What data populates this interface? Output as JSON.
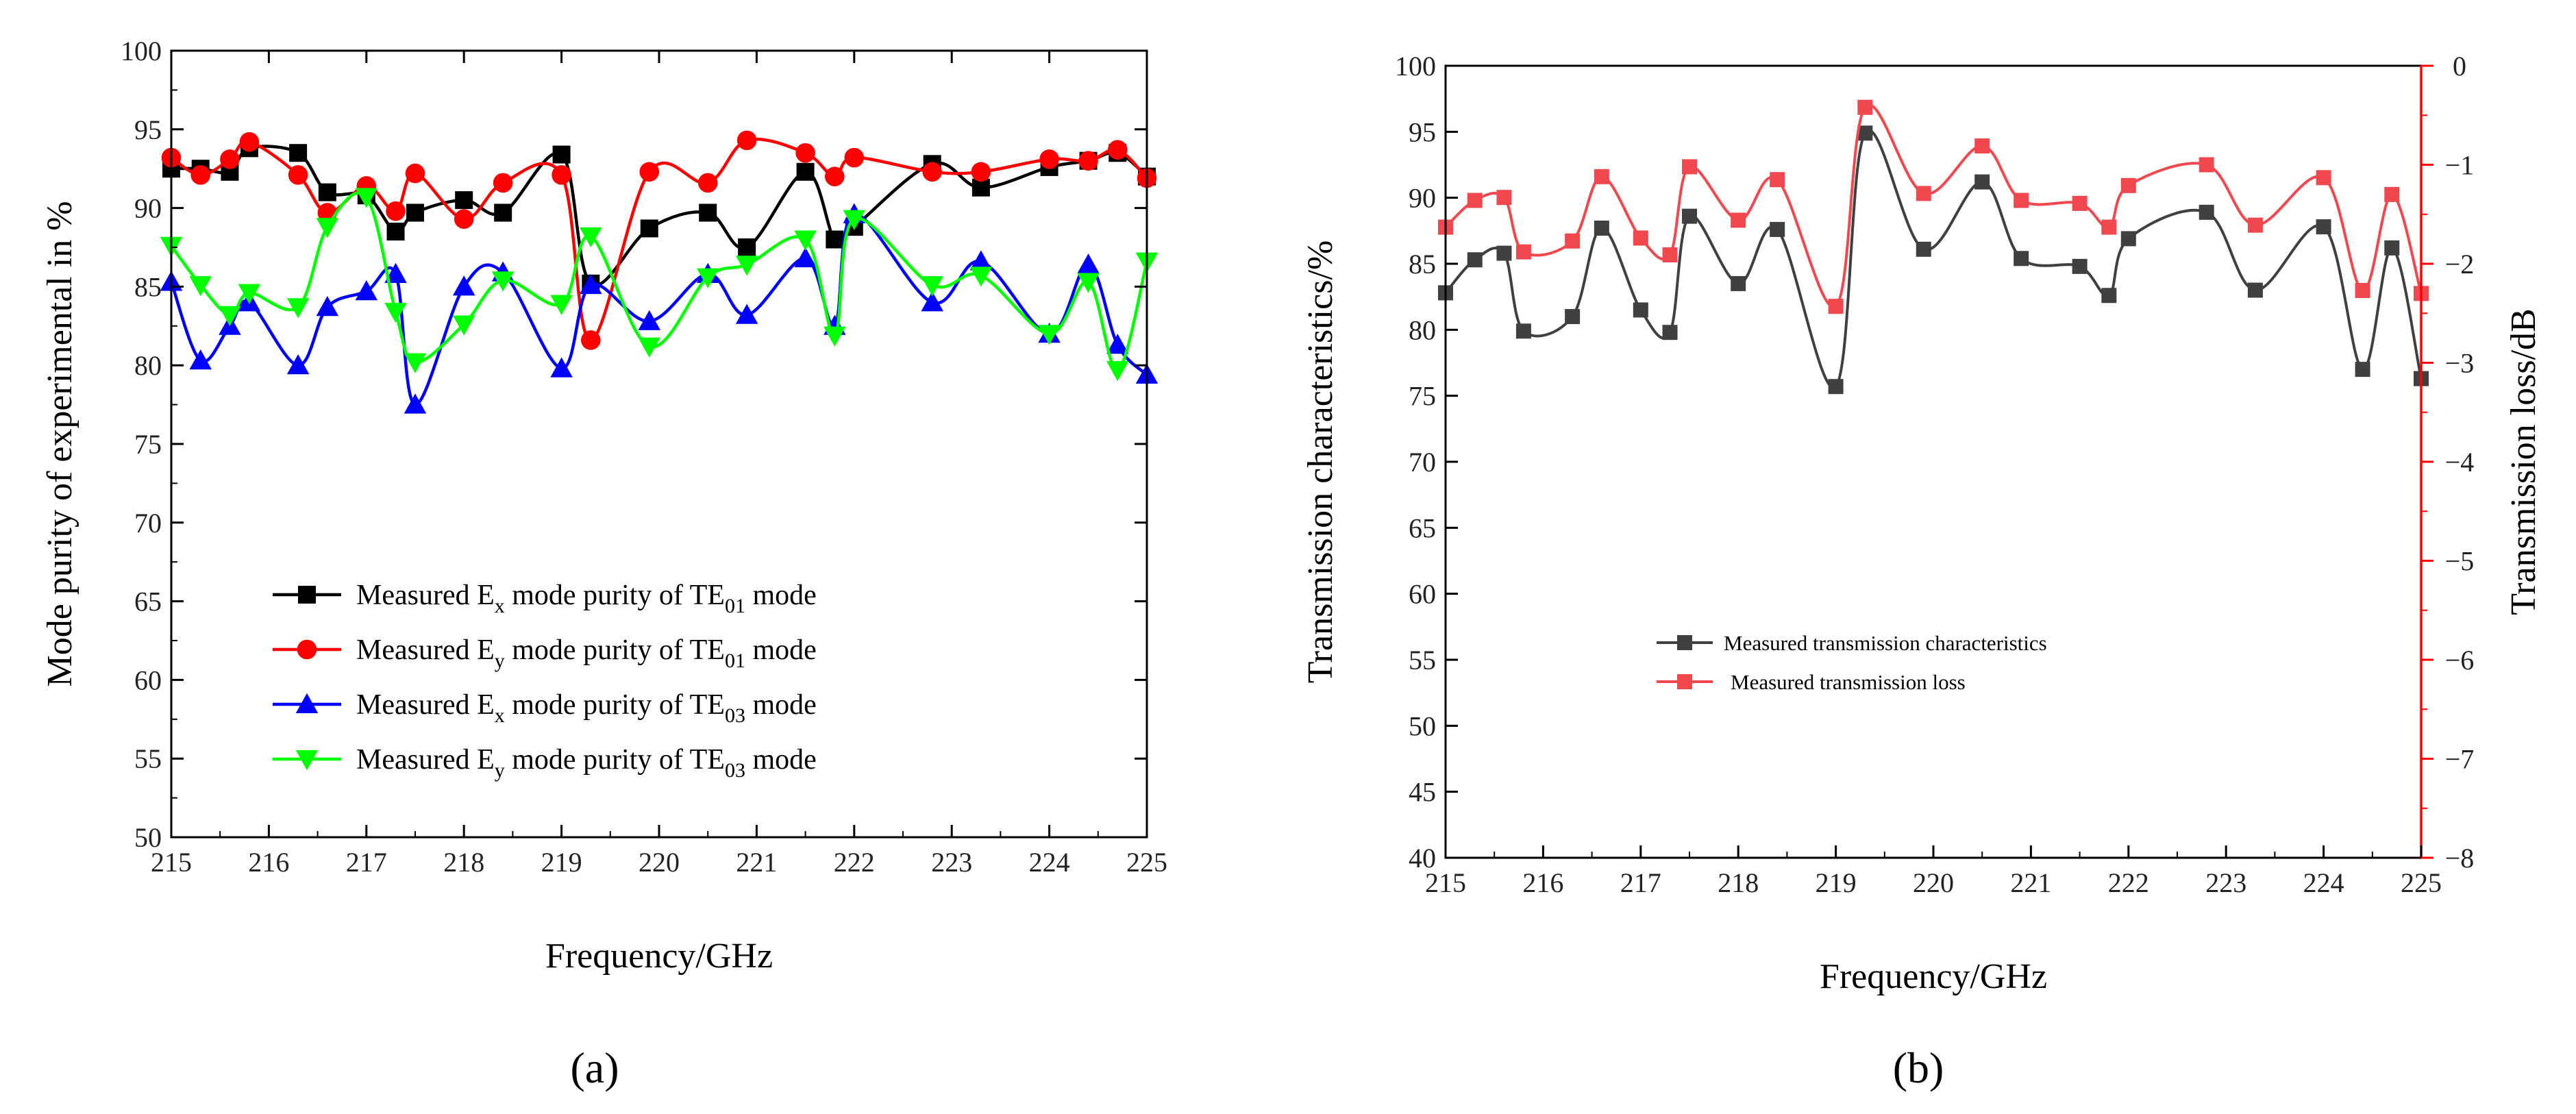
{
  "colors": {
    "black": "#000000",
    "red": "#ff0000",
    "blue": "#0000ff",
    "green": "#00ff00",
    "gray": "#404040",
    "lightred": "#f0484e"
  },
  "chart_data": [
    {
      "panel": "a",
      "panel_label": "(a)",
      "type": "line",
      "title": "",
      "xlabel": "Frequency/GHz",
      "ylabel": "Mode purity of experimental in %",
      "xlim": [
        215,
        225
      ],
      "ylim": [
        50,
        100
      ],
      "xticks": [
        215,
        216,
        217,
        218,
        219,
        220,
        221,
        222,
        223,
        224,
        225
      ],
      "yticks": [
        50,
        55,
        60,
        65,
        70,
        75,
        80,
        85,
        90,
        95,
        100
      ],
      "grid": false,
      "legend_position": "lower-left",
      "series": [
        {
          "name": "Measured Ex mode purity of TE01 mode",
          "legend": {
            "pre": "Measured E",
            "sub1": "x",
            "mid": " mode purity of TE",
            "sub2": "01",
            "post": " mode"
          },
          "color": "#000000",
          "marker": "square",
          "x": [
            215,
            215.3,
            215.6,
            215.8,
            216.3,
            216.6,
            217.0,
            217.3,
            217.5,
            218.0,
            218.4,
            219.0,
            219.3,
            219.9,
            220.5,
            220.9,
            221.5,
            221.8,
            222.0,
            222.8,
            223.3,
            224.0,
            224.4,
            224.7,
            225.0
          ],
          "y": [
            92.5,
            92.5,
            92.3,
            93.8,
            93.5,
            91.0,
            90.8,
            88.5,
            89.7,
            90.5,
            89.7,
            93.4,
            85.2,
            88.7,
            89.7,
            87.5,
            92.3,
            88.0,
            88.8,
            92.8,
            91.3,
            92.6,
            93.0,
            93.5,
            92.0
          ]
        },
        {
          "name": "Measured Ey mode purity of TE01 mode",
          "legend": {
            "pre": "Measured E",
            "sub1": "y",
            "mid": " mode purity of TE",
            "sub2": "01",
            "post": " mode"
          },
          "color": "#ff0000",
          "marker": "circle",
          "x": [
            215,
            215.3,
            215.6,
            215.8,
            216.3,
            216.6,
            217.0,
            217.3,
            217.5,
            218.0,
            218.4,
            219.0,
            219.3,
            219.9,
            220.5,
            220.9,
            221.5,
            221.8,
            222.0,
            222.8,
            223.3,
            224.0,
            224.4,
            224.7,
            225.0
          ],
          "y": [
            93.2,
            92.1,
            93.1,
            94.2,
            92.1,
            89.7,
            91.4,
            89.8,
            92.2,
            89.3,
            91.6,
            92.1,
            81.6,
            92.3,
            91.6,
            94.3,
            93.5,
            92.0,
            93.2,
            92.3,
            92.3,
            93.1,
            93.0,
            93.7,
            91.9
          ]
        },
        {
          "name": "Measured Ex mode purity of TE03 mode",
          "legend": {
            "pre": "Measured E",
            "sub1": "x",
            "mid": " mode purity of TE",
            "sub2": "03",
            "post": " mode"
          },
          "color": "#0000ff",
          "marker": "triangle-up",
          "x": [
            215,
            215.3,
            215.6,
            215.8,
            216.3,
            216.6,
            217.0,
            217.3,
            217.5,
            218.0,
            218.4,
            219.0,
            219.3,
            219.9,
            220.5,
            220.9,
            221.5,
            221.8,
            222.0,
            222.8,
            223.3,
            224.0,
            224.4,
            224.7,
            225.0
          ],
          "y": [
            85.3,
            80.3,
            82.5,
            84.0,
            80.0,
            83.7,
            84.7,
            85.8,
            77.5,
            85.0,
            85.9,
            79.8,
            85.1,
            82.8,
            85.8,
            83.2,
            86.8,
            82.5,
            89.6,
            84.0,
            86.6,
            82.0,
            86.4,
            81.3,
            79.4
          ]
        },
        {
          "name": "Measured Ey mode purity of TE03 mode",
          "legend": {
            "pre": "Measured E",
            "sub1": "y",
            "mid": " mode purity of TE",
            "sub2": "03",
            "post": " mode"
          },
          "color": "#00ff00",
          "marker": "triangle-down",
          "x": [
            215,
            215.3,
            215.6,
            215.8,
            216.3,
            216.6,
            217.0,
            217.3,
            217.5,
            218.0,
            218.4,
            219.0,
            219.3,
            219.9,
            220.5,
            220.9,
            221.5,
            221.8,
            222.0,
            222.8,
            223.3,
            224.0,
            224.4,
            224.7,
            225.0
          ],
          "y": [
            87.6,
            85.1,
            83.2,
            84.6,
            83.7,
            88.8,
            90.7,
            83.4,
            80.2,
            82.6,
            85.4,
            83.9,
            88.2,
            81.2,
            85.6,
            86.4,
            88.0,
            81.9,
            89.3,
            85.1,
            85.7,
            82.0,
            85.3,
            79.7,
            86.6
          ]
        }
      ]
    },
    {
      "panel": "b",
      "panel_label": "(b)",
      "type": "line",
      "title": "",
      "xlabel": "Frequency/GHz",
      "ylabel": "Transmission characteristics/%",
      "y2label": "Transmission loss/dB",
      "xlim": [
        215,
        225
      ],
      "ylim": [
        40,
        100
      ],
      "y2lim": [
        -8,
        0
      ],
      "xticks": [
        215,
        216,
        217,
        218,
        219,
        220,
        221,
        222,
        223,
        224,
        225
      ],
      "yticks": [
        40,
        45,
        50,
        55,
        60,
        65,
        70,
        75,
        80,
        85,
        90,
        95,
        100
      ],
      "y2ticks": [
        -8,
        -7,
        -6,
        -5,
        -4,
        -3,
        -2,
        -1,
        0
      ],
      "grid": false,
      "legend_position": "center-left",
      "series": [
        {
          "name": "Measured transmission characteristics",
          "axis": "left",
          "color": "#404040",
          "marker": "square",
          "x": [
            215,
            215.3,
            215.6,
            215.8,
            216.3,
            216.6,
            217.0,
            217.3,
            217.5,
            218.0,
            218.4,
            219.0,
            219.3,
            219.9,
            220.5,
            220.9,
            221.5,
            221.8,
            222.0,
            222.8,
            223.3,
            224.0,
            224.4,
            224.7,
            225.0
          ],
          "y": [
            82.8,
            85.3,
            85.8,
            79.9,
            81.0,
            87.7,
            81.5,
            79.8,
            88.6,
            83.5,
            87.6,
            75.7,
            94.9,
            86.1,
            91.2,
            85.4,
            84.8,
            82.6,
            86.9,
            88.9,
            83.0,
            87.8,
            77.0,
            86.2,
            76.3
          ]
        },
        {
          "name": "Measured transmission loss",
          "axis": "right",
          "color": "#f0484e",
          "marker": "square",
          "x": [
            215,
            215.3,
            215.6,
            215.8,
            216.3,
            216.6,
            217.0,
            217.3,
            217.5,
            218.0,
            218.4,
            219.0,
            219.3,
            219.9,
            220.5,
            220.9,
            221.5,
            221.8,
            222.0,
            222.8,
            223.3,
            224.0,
            224.4,
            224.7,
            225.0
          ],
          "y": [
            -1.63,
            -1.36,
            -1.33,
            -1.88,
            -1.77,
            -1.12,
            -1.74,
            -1.91,
            -1.02,
            -1.56,
            -1.15,
            -2.43,
            -0.42,
            -1.29,
            -0.81,
            -1.36,
            -1.39,
            -1.63,
            -1.21,
            -1.0,
            -1.61,
            -1.13,
            -2.27,
            -1.3,
            -2.3
          ]
        }
      ]
    }
  ]
}
